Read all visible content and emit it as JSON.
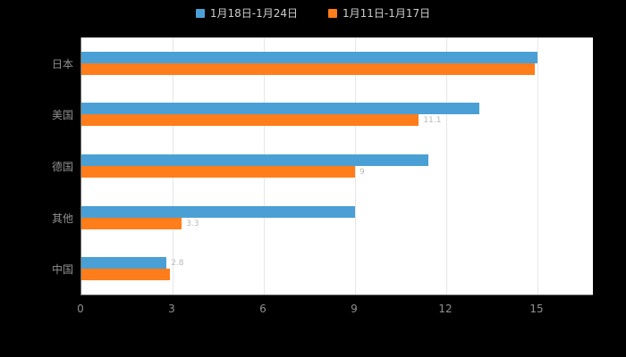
{
  "colors": {
    "background": "#000000",
    "plot_background": "#ffffff",
    "grid": "#e7e7e7",
    "axis": "#6e6e6e",
    "text_muted": "#8f8f8f",
    "legend_text": "#cdcdcd",
    "series1_blue": "#4aa0d5",
    "series2_orange": "#ff7d1a"
  },
  "chart_data": {
    "type": "bar",
    "orientation": "horizontal",
    "title": "",
    "xlabel": "",
    "ylabel": "",
    "categories": [
      "日本",
      "美国",
      "德国",
      "其他",
      "中国"
    ],
    "series": [
      {
        "name": "1月18日-1月24日",
        "color": "#4aa0d5",
        "values": [
          15,
          13.1,
          11.4,
          9,
          2.8
        ]
      },
      {
        "name": "1月11日-1月17日",
        "color": "#ff7d1a",
        "values": [
          14.9,
          11.1,
          9,
          3.3,
          2.9
        ]
      }
    ],
    "x_ticks": [
      0,
      3,
      6,
      9,
      12,
      15
    ],
    "xlim": [
      0,
      15
    ],
    "grid": true,
    "legend_position": "top",
    "annotations": [
      {
        "category": 1,
        "series": 1,
        "text": "11.1"
      },
      {
        "category": 2,
        "series": 1,
        "text": "9"
      },
      {
        "category": 3,
        "series": 1,
        "text": "3.3"
      },
      {
        "category": 4,
        "series": 0,
        "text": "2.8"
      }
    ]
  }
}
